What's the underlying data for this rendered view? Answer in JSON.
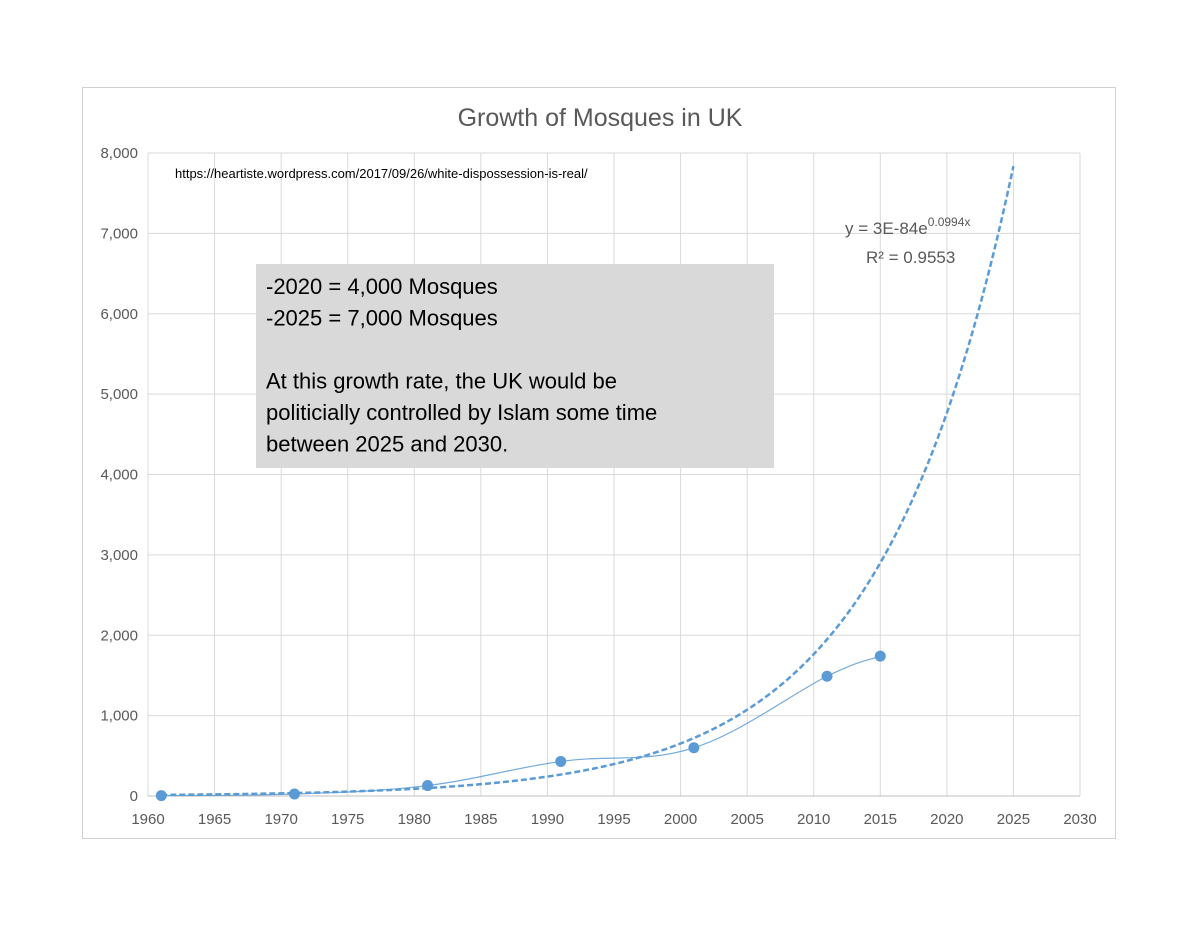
{
  "chart_data": {
    "type": "scatter",
    "title": "Growth of Mosques in UK",
    "source_url": "https://heartiste.wordpress.com/2017/09/26/white-dispossession-is-real/",
    "xlim": [
      1960,
      2030
    ],
    "ylim": [
      0,
      8000
    ],
    "x_ticks": [
      "1960",
      "1965",
      "1970",
      "1975",
      "1980",
      "1985",
      "1990",
      "1995",
      "2000",
      "2005",
      "2010",
      "2015",
      "2020",
      "2025",
      "2030"
    ],
    "y_ticks": [
      "0",
      "1,000",
      "2,000",
      "3,000",
      "4,000",
      "5,000",
      "6,000",
      "7,000",
      "8,000"
    ],
    "grid": true,
    "series": [
      {
        "x": [
          1961,
          1971,
          1981,
          1991,
          2001,
          2011,
          2015
        ],
        "y": [
          5,
          25,
          130,
          430,
          600,
          1490,
          1740
        ],
        "color": "#5b9bd5"
      }
    ],
    "trendline": {
      "kind": "exponential",
      "a": 3e-84,
      "b": 0.0994,
      "x_range": [
        1961,
        2025
      ],
      "color": "#5b9bd5",
      "equation_label": "y = 3E-84e",
      "equation_exponent": "0.0994x",
      "r_squared_label": "R² = 0.9553"
    },
    "annotation": {
      "lines": [
        "-2020 = 4,000 Mosques",
        "-2025 = 7,000 Mosques",
        "",
        "At this growth rate, the UK would be",
        "politicially controlled by Islam some time",
        "between 2025 and 2030."
      ],
      "background": "#d9d9d9"
    }
  }
}
